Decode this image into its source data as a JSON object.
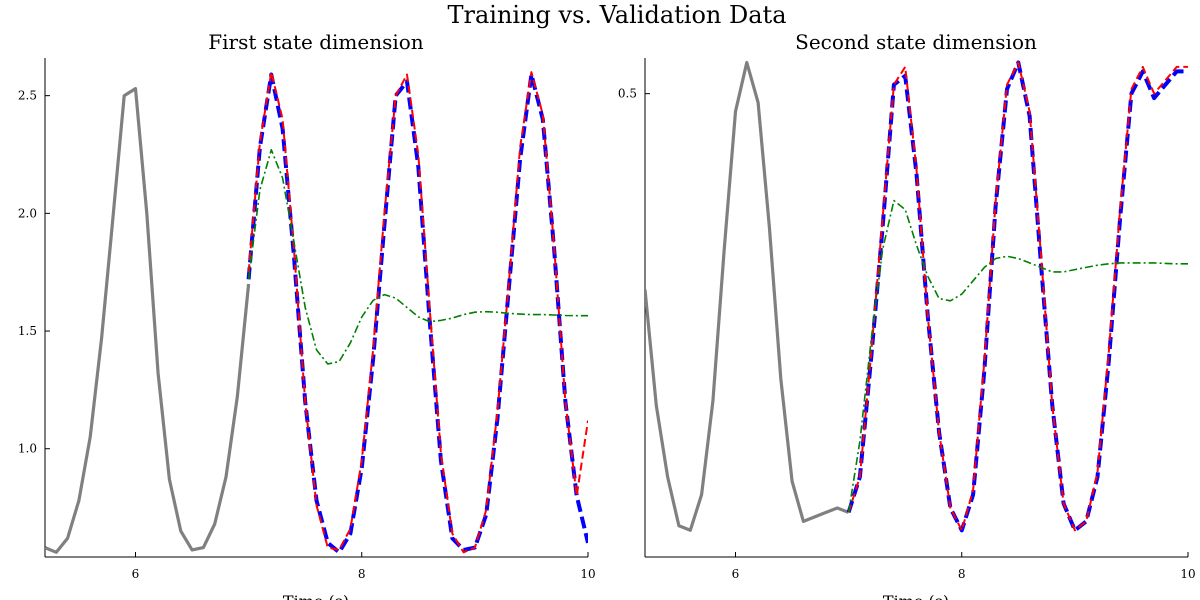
{
  "figure": {
    "title": "Training vs. Validation Data"
  },
  "chart_data": [
    {
      "type": "line",
      "title": "First state dimension",
      "xlabel": "Time (s)",
      "ylabel": "",
      "xlim": [
        5.2,
        10.0
      ],
      "ylim": [
        0.54,
        2.66
      ],
      "xticks": [
        6,
        8,
        10
      ],
      "yticks": [
        1.0,
        1.5,
        2.0,
        2.5
      ],
      "grid": false,
      "legend": "none",
      "series": [
        {
          "color": "#808080",
          "style": "solid",
          "x": [
            5.2,
            5.3,
            5.4,
            5.5,
            5.6,
            5.7,
            5.8,
            5.9,
            6.0,
            6.1,
            6.2,
            6.3,
            6.4,
            6.5,
            6.6,
            6.7,
            6.8,
            6.9,
            7.0
          ],
          "y": [
            0.58,
            0.56,
            0.62,
            0.78,
            1.05,
            1.47,
            1.98,
            2.5,
            2.53,
            2.0,
            1.32,
            0.87,
            0.65,
            0.57,
            0.58,
            0.68,
            0.88,
            1.22,
            1.7
          ]
        },
        {
          "color": "#0000ff",
          "style": "dashed-thick",
          "x": [
            7.0,
            7.1,
            7.2,
            7.3,
            7.4,
            7.5,
            7.6,
            7.7,
            7.8,
            7.9,
            8.0,
            8.1,
            8.2,
            8.3,
            8.4,
            8.5,
            8.6,
            8.7,
            8.8,
            8.9,
            9.0,
            9.1,
            9.2,
            9.3,
            9.4,
            9.5,
            9.6,
            9.7,
            9.8,
            9.9,
            10.0
          ],
          "y": [
            1.72,
            2.28,
            2.59,
            2.36,
            1.82,
            1.2,
            0.78,
            0.6,
            0.56,
            0.64,
            0.92,
            1.38,
            1.95,
            2.5,
            2.56,
            2.2,
            1.55,
            0.95,
            0.62,
            0.57,
            0.58,
            0.72,
            1.13,
            1.68,
            2.23,
            2.59,
            2.4,
            1.85,
            1.2,
            0.8,
            0.6
          ]
        },
        {
          "color": "#ff0000",
          "style": "dashed",
          "x": [
            7.0,
            7.1,
            7.2,
            7.3,
            7.4,
            7.5,
            7.6,
            7.7,
            7.8,
            7.9,
            8.0,
            8.1,
            8.2,
            8.3,
            8.4,
            8.5,
            8.6,
            8.7,
            8.8,
            8.9,
            9.0,
            9.1,
            9.2,
            9.3,
            9.4,
            9.5,
            9.6,
            9.7,
            9.8,
            9.9,
            10.0
          ],
          "y": [
            1.75,
            2.3,
            2.6,
            2.4,
            1.85,
            1.2,
            0.76,
            0.58,
            0.57,
            0.66,
            0.95,
            1.42,
            2.0,
            2.5,
            2.59,
            2.25,
            1.6,
            0.98,
            0.64,
            0.56,
            0.58,
            0.74,
            1.16,
            1.7,
            2.28,
            2.6,
            2.42,
            1.86,
            1.2,
            0.8,
            1.12
          ]
        },
        {
          "color": "#008000",
          "style": "dashdot",
          "x": [
            7.0,
            7.1,
            7.2,
            7.3,
            7.4,
            7.5,
            7.6,
            7.7,
            7.8,
            7.9,
            8.0,
            8.1,
            8.2,
            8.3,
            8.4,
            8.5,
            8.6,
            8.7,
            8.8,
            8.9,
            9.0,
            9.1,
            9.2,
            9.3,
            9.4,
            9.5,
            9.6,
            9.7,
            9.8,
            9.9,
            10.0
          ],
          "y": [
            1.72,
            2.1,
            2.27,
            2.15,
            1.88,
            1.6,
            1.42,
            1.36,
            1.37,
            1.45,
            1.56,
            1.63,
            1.655,
            1.64,
            1.6,
            1.56,
            1.54,
            1.545,
            1.555,
            1.57,
            1.58,
            1.582,
            1.58,
            1.575,
            1.572,
            1.57,
            1.57,
            1.568,
            1.566,
            1.565,
            1.565
          ]
        }
      ]
    },
    {
      "type": "line",
      "title": "Second state dimension",
      "xlabel": "Time (s)",
      "ylabel": "",
      "xlim": [
        5.2,
        10.0
      ],
      "ylim": [
        -0.54,
        0.58
      ],
      "xticks": [
        6,
        8,
        10
      ],
      "yticks": [
        0.5
      ],
      "grid": false,
      "legend": "none",
      "series": [
        {
          "color": "#808080",
          "style": "solid",
          "x": [
            5.2,
            5.3,
            5.4,
            5.5,
            5.6,
            5.7,
            5.8,
            5.9,
            6.0,
            6.1,
            6.2,
            6.3,
            6.4,
            6.5,
            6.6,
            6.7,
            6.8,
            6.9,
            7.0
          ],
          "y": [
            0.06,
            -0.2,
            -0.36,
            -0.47,
            -0.48,
            -0.4,
            -0.19,
            0.15,
            0.46,
            0.57,
            0.48,
            0.2,
            -0.14,
            -0.37,
            -0.46,
            -0.45,
            -0.44,
            -0.43,
            -0.44
          ]
        },
        {
          "color": "#0000ff",
          "style": "dashed-thick",
          "x": [
            7.0,
            7.1,
            7.2,
            7.3,
            7.4,
            7.5,
            7.6,
            7.7,
            7.8,
            7.9,
            8.0,
            8.1,
            8.2,
            8.3,
            8.4,
            8.5,
            8.6,
            8.7,
            8.8,
            8.9,
            9.0,
            9.1,
            9.2,
            9.3,
            9.4,
            9.5,
            9.6,
            9.7,
            9.8,
            9.9,
            10.0
          ],
          "y": [
            -0.44,
            -0.36,
            -0.09,
            0.2,
            0.52,
            0.54,
            0.32,
            0.0,
            -0.26,
            -0.43,
            -0.48,
            -0.4,
            -0.12,
            0.25,
            0.51,
            0.57,
            0.45,
            0.12,
            -0.2,
            -0.42,
            -0.48,
            -0.46,
            -0.36,
            -0.1,
            0.22,
            0.5,
            0.55,
            0.49,
            0.52,
            0.55,
            0.55
          ]
        },
        {
          "color": "#ff0000",
          "style": "dashed",
          "x": [
            7.0,
            7.1,
            7.2,
            7.3,
            7.4,
            7.5,
            7.6,
            7.7,
            7.8,
            7.9,
            8.0,
            8.1,
            8.2,
            8.3,
            8.4,
            8.5,
            8.6,
            8.7,
            8.8,
            8.9,
            9.0,
            9.1,
            9.2,
            9.3,
            9.4,
            9.5,
            9.6,
            9.7,
            9.8,
            9.9,
            10.0
          ],
          "y": [
            -0.44,
            -0.36,
            -0.08,
            0.22,
            0.52,
            0.56,
            0.33,
            0.0,
            -0.26,
            -0.43,
            -0.48,
            -0.39,
            -0.1,
            0.26,
            0.52,
            0.57,
            0.46,
            0.14,
            -0.2,
            -0.42,
            -0.48,
            -0.46,
            -0.35,
            -0.08,
            0.24,
            0.51,
            0.56,
            0.5,
            0.53,
            0.56,
            0.56
          ]
        },
        {
          "color": "#008000",
          "style": "dashdot",
          "x": [
            7.0,
            7.1,
            7.2,
            7.3,
            7.4,
            7.5,
            7.6,
            7.7,
            7.8,
            7.9,
            8.0,
            8.1,
            8.2,
            8.3,
            8.4,
            8.5,
            8.6,
            8.7,
            8.8,
            8.9,
            9.0,
            9.1,
            9.2,
            9.3,
            9.4,
            9.5,
            9.6,
            9.7,
            9.8,
            9.9,
            10.0
          ],
          "y": [
            -0.44,
            -0.28,
            -0.05,
            0.15,
            0.26,
            0.24,
            0.16,
            0.09,
            0.04,
            0.035,
            0.05,
            0.08,
            0.11,
            0.13,
            0.135,
            0.13,
            0.12,
            0.11,
            0.1,
            0.1,
            0.105,
            0.11,
            0.115,
            0.118,
            0.12,
            0.12,
            0.12,
            0.12,
            0.119,
            0.118,
            0.118
          ]
        }
      ]
    }
  ]
}
